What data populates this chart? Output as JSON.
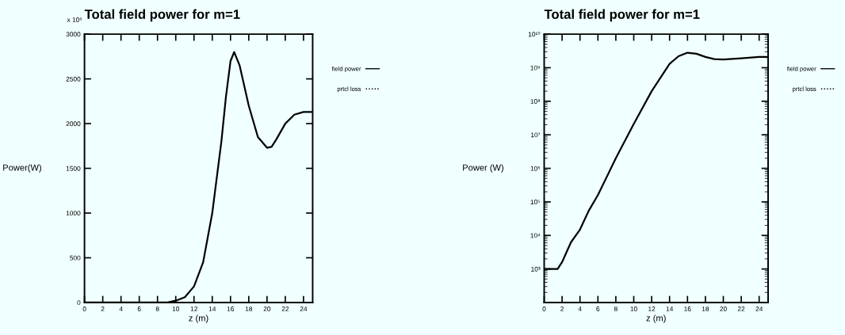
{
  "chart_data": [
    {
      "type": "line",
      "title": "Total field power for m=1",
      "xlabel": "z (m)",
      "ylabel": "Power(W)",
      "annotations": [
        "x 10⁶"
      ],
      "x": [
        0,
        2,
        4,
        6,
        8,
        9,
        10,
        11,
        12,
        13,
        14,
        15,
        15.5,
        16,
        16.4,
        17,
        18,
        19,
        20,
        20.5,
        21,
        22,
        23,
        24,
        25
      ],
      "series": [
        {
          "name": "field power",
          "color": "#000000",
          "line_style": "solid",
          "values": [
            0,
            0,
            0,
            0,
            0,
            0,
            20,
            60,
            180,
            450,
            1000,
            1800,
            2300,
            2700,
            2800,
            2650,
            2200,
            1850,
            1730,
            1740,
            1820,
            2000,
            2100,
            2130,
            2130
          ]
        },
        {
          "name": "prtcl loss",
          "color": "#000000",
          "line_style": "dotted",
          "values": [
            null,
            null,
            null,
            null,
            null,
            null,
            null,
            null,
            null,
            null,
            null,
            null,
            null,
            null,
            null,
            null,
            null,
            null,
            null,
            null,
            null,
            null,
            null,
            null,
            null
          ]
        }
      ],
      "xlim": [
        0,
        25
      ],
      "xticks": [
        0,
        2,
        4,
        6,
        8,
        10,
        12,
        14,
        16,
        18,
        20,
        22,
        24
      ],
      "ylim": [
        0,
        3000
      ],
      "yticks": [
        0,
        500,
        1000,
        1500,
        2000,
        2500,
        3000
      ],
      "legend": "right",
      "grid": false
    },
    {
      "type": "line",
      "title": "Total field power for m=1",
      "xlabel": "z (m)",
      "ylabel": "Power (W)",
      "log": "y",
      "x": [
        0,
        1.5,
        2,
        2.5,
        3,
        4,
        5,
        6,
        8,
        10,
        12,
        14,
        15,
        16,
        17,
        18,
        19,
        20,
        22,
        24,
        25
      ],
      "series": [
        {
          "name": "field power",
          "color": "#000000",
          "line_style": "solid",
          "values": [
            1000,
            1000,
            1600,
            3200,
            6300,
            15000,
            56000,
            160000,
            2000000,
            21000000,
            200000000,
            1300000000,
            2200000000,
            2800000000,
            2600000000,
            2100000000,
            1800000000,
            1750000000,
            1900000000,
            2100000000,
            2100000000
          ]
        },
        {
          "name": "prtcl loss",
          "color": "#000000",
          "line_style": "dotted",
          "values": [
            null,
            null,
            null,
            null,
            null,
            null,
            null,
            null,
            null,
            null,
            null,
            null,
            null,
            null,
            null,
            null,
            null,
            null,
            null,
            null,
            null
          ]
        }
      ],
      "xlim": [
        0,
        25
      ],
      "xticks": [
        0,
        2,
        4,
        6,
        8,
        10,
        12,
        14,
        16,
        18,
        20,
        22,
        24
      ],
      "ylim": [
        100,
        10000000000
      ],
      "yticks": [
        {
          "value": 1000,
          "label": "10³"
        },
        {
          "value": 10000,
          "label": "10⁴"
        },
        {
          "value": 100000,
          "label": "10⁵"
        },
        {
          "value": 1000000,
          "label": "10⁶"
        },
        {
          "value": 10000000,
          "label": "10⁷"
        },
        {
          "value": 100000000,
          "label": "10⁸"
        },
        {
          "value": 1000000000,
          "label": "10⁹"
        },
        {
          "value": 10000000000,
          "label": "10¹⁰"
        }
      ],
      "legend": "right",
      "grid": false
    }
  ]
}
